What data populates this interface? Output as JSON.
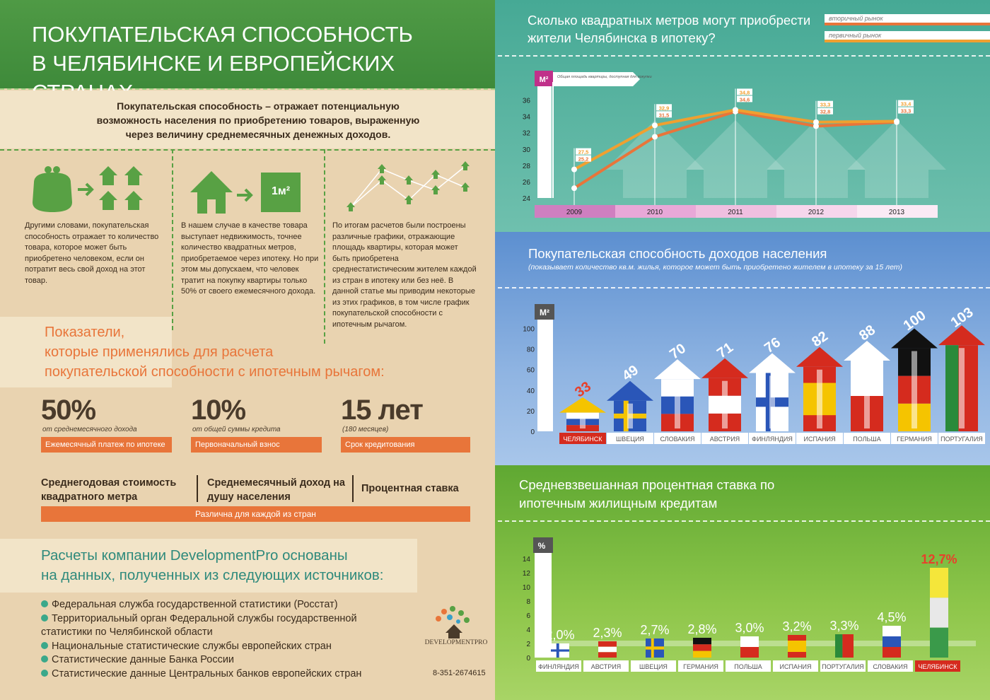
{
  "colors": {
    "green": "#4f9a45",
    "orange": "#e8753a",
    "teal": "#3aa692",
    "blue": "#5a8ecf",
    "lightgreen": "#7cbf3a"
  },
  "header": {
    "title_line1": "ПОКУПАТЕЛЬСКАЯ СПОСОБНОСТЬ",
    "title_line2": "В ЧЕЛЯБИНСКЕ И ЕВРОПЕЙСКИХ СТРАНАХ"
  },
  "definition": {
    "line1": "Покупательская способность – отражает потенциальную",
    "line2": "возможность населения по приобретению товаров, выраженную",
    "line3": "через величину среднемесячных денежных доходов."
  },
  "columns": [
    {
      "icon": "wallet-to-houses-icon",
      "text": "Другими словами, покупательская способность отражает то количество товара, которое может быть приобретено человеком, если он потратит весь свой доход на этот товар."
    },
    {
      "icon": "house-to-square-meter-icon",
      "badge": "1м²",
      "text": "В нашем случае в качестве товара выступает недвижимость, точнее количество квадратных метров, приобретаемое через ипотеку. Но при этом мы допускаем, что человек тратит на покупку квартиры только 50% от своего ежемесячного дохода."
    },
    {
      "icon": "graph-houses-icon",
      "text": "По итогам расчетов были построены различные графики, отражающие площадь квартиры, которая может быть приобретена среднестатистическим жителем каждой из стран в ипотеку или без неё. В данной статье мы приводим некоторые из этих графиков, в том числе график покупательской способности с ипотечным рычагом."
    }
  ],
  "indicators": {
    "heading_line1": "Показатели,",
    "heading_line2": "которые применялись для расчета",
    "heading_line3": "покупательской способности с ипотечным рычагом:",
    "items": [
      {
        "value": "50%",
        "sub": "от среднемесячного дохода",
        "tag": "Ежемесячный платеж по ипотеке"
      },
      {
        "value": "10%",
        "sub": "от общей суммы кредита",
        "tag": "Первоначальный взнос"
      },
      {
        "value": "15 лет",
        "sub": "(180 месяцев)",
        "tag": "Срок кредитования"
      }
    ],
    "vary": [
      "Среднегодовая стоимость квадратного метра",
      "Среднемесячный доход на душу населения",
      "Процентная ставка"
    ],
    "vary_tag": "Различна для каждой из стран"
  },
  "sources": {
    "heading_line1": "Расчеты компании DevelopmentPro основаны",
    "heading_line2": "на данных, полученных из следующих источников:",
    "items": [
      "Федеральная служба государственной статистики (Росстат)",
      "Территориальный орган Федеральной службы государственной статистики по Челябинской области",
      "Национальные статистические службы европейских стран",
      "Статистические данные Банка России",
      "Статистические данные Центральных банков европейских стран"
    ],
    "logo_text": "DEVELOPMENTPRO",
    "phone": "8-351-2674615"
  },
  "chart_data": [
    {
      "type": "line",
      "title": "Сколько квадратных метров могут приобрести жители Челябинска в ипотеку?",
      "ylabel": "М²",
      "axis_note": "Общая площадь квартиры, доступная для покупки",
      "x": [
        "2009",
        "2010",
        "2011",
        "2012",
        "2013"
      ],
      "yticks": [
        24,
        26,
        28,
        30,
        32,
        34,
        36
      ],
      "ylim": [
        24,
        37
      ],
      "series": [
        {
          "name": "вторичный рынок",
          "values": [
            25.2,
            31.5,
            34.6,
            32.8,
            33.3
          ],
          "labels": [
            "25,2",
            "31,5",
            "34,6",
            "32,8",
            "33,3"
          ],
          "color": "#e8753a"
        },
        {
          "name": "первичный рынок",
          "values": [
            27.5,
            32.9,
            34.8,
            33.3,
            33.4
          ],
          "labels": [
            "27,5",
            "32,9",
            "34,8",
            "33,3",
            "33,4"
          ],
          "color": "#f0a030"
        }
      ]
    },
    {
      "type": "bar",
      "title": "Покупательская способность доходов населения",
      "subtitle": "(показывает количество кв.м. жилья, которое может быть приобретено жителем в ипотеку за 15 лет)",
      "ylabel": "М²",
      "yticks": [
        0,
        20,
        40,
        60,
        80,
        100
      ],
      "ylim": [
        0,
        110
      ],
      "categories": [
        "ЧЕЛЯБИНСК",
        "ШВЕЦИЯ",
        "СЛОВАКИЯ",
        "АВСТРИЯ",
        "ФИНЛЯНДИЯ",
        "ИСПАНИЯ",
        "ПОЛЬША",
        "ГЕРМАНИЯ",
        "ПОРТУГАЛИЯ"
      ],
      "values": [
        33,
        49,
        70,
        71,
        76,
        82,
        88,
        100,
        103
      ],
      "flags": [
        "russia",
        "sweden",
        "slovakia",
        "austria",
        "finland",
        "spain",
        "poland",
        "germany",
        "portugal"
      ]
    },
    {
      "type": "bar",
      "title": "Средневзвешанная процентная ставка по ипотечным жилищным кредитам",
      "ylabel": "%",
      "yticks": [
        0,
        2,
        4,
        6,
        8,
        10,
        12,
        14
      ],
      "ylim": [
        0,
        14
      ],
      "categories": [
        "ФИНЛЯНДИЯ",
        "АВСТРИЯ",
        "ШВЕЦИЯ",
        "ГЕРМАНИЯ",
        "ПОЛЬША",
        "ИСПАНИЯ",
        "ПОРТУГАЛИЯ",
        "СЛОВАКИЯ",
        "ЧЕЛЯБИНСК"
      ],
      "values": [
        2.0,
        2.3,
        2.7,
        2.8,
        3.0,
        3.2,
        3.3,
        4.5,
        12.7
      ],
      "labels": [
        "2,0%",
        "2,3%",
        "2,7%",
        "2,8%",
        "3,0%",
        "3,2%",
        "3,3%",
        "4,5%",
        "12,7%"
      ],
      "flags": [
        "finland",
        "austria",
        "sweden",
        "germany",
        "poland",
        "spain",
        "portugal",
        "slovakia",
        "russia"
      ]
    }
  ]
}
